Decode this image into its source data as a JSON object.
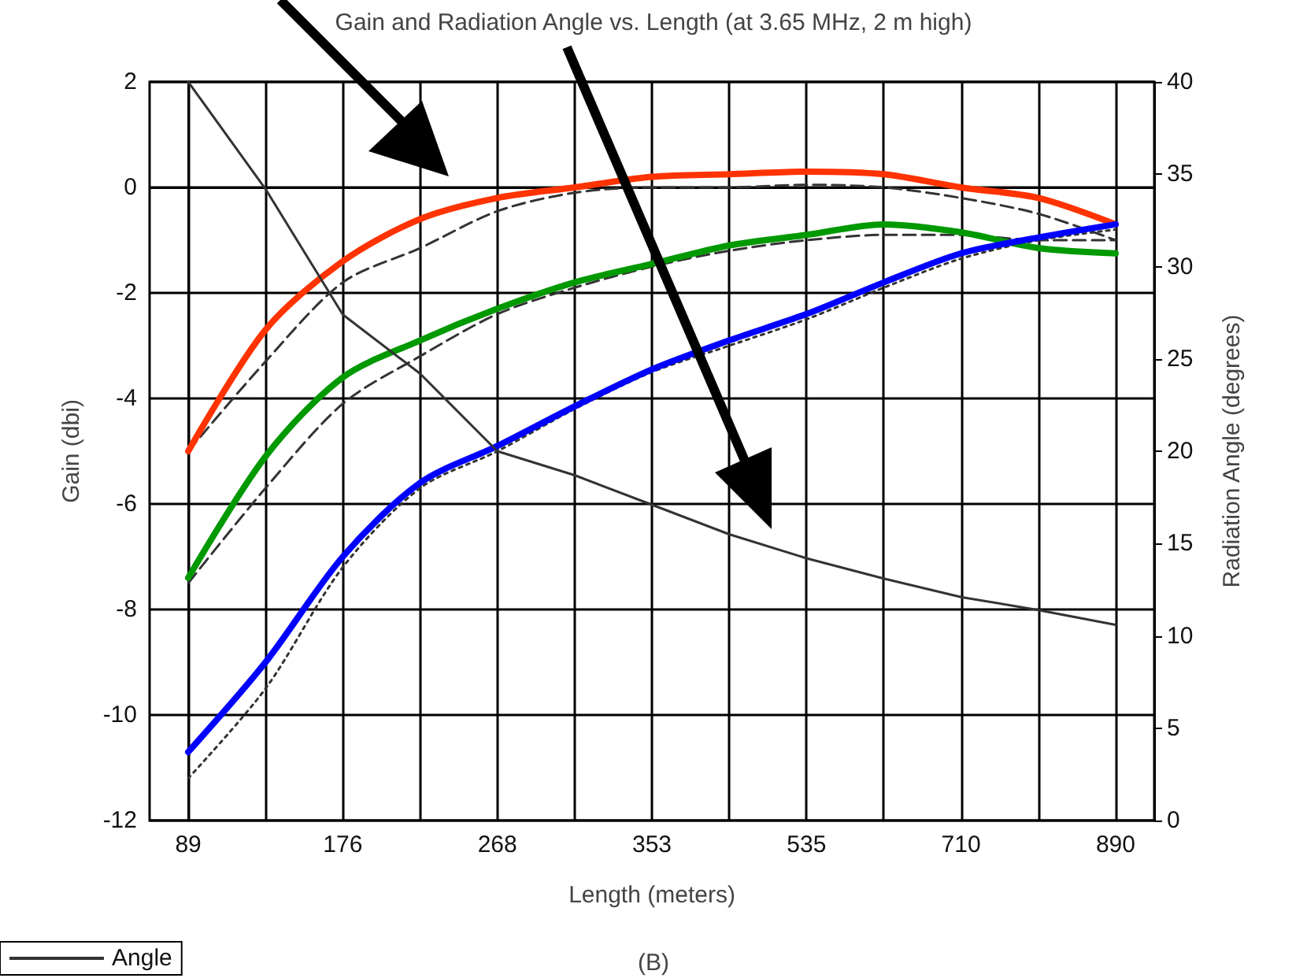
{
  "chart_data": {
    "type": "line",
    "title": "Gain and Radiation Angle vs. Length (at 3.65 MHz, 2 m high)",
    "xlabel": "Length (meters)",
    "ylabel": "Gain (dbi)",
    "y2label": "Radiation Angle (degrees)",
    "categories": [
      "89",
      null,
      "176",
      null,
      "268",
      null,
      "353",
      null,
      "535",
      null,
      "710",
      null,
      "890"
    ],
    "series": [
      {
        "color": "#333333",
        "line_style": "dashed",
        "values": [
          -5.0,
          -3.3,
          -1.8,
          -1.15,
          -0.45,
          -0.1,
          0.0,
          0.0,
          0.05,
          0.0,
          -0.2,
          -0.5,
          -1.0
        ]
      },
      {
        "color": "#333333",
        "line_style": "dashed",
        "values": [
          -7.5,
          -5.7,
          -4.1,
          -3.2,
          -2.4,
          -1.9,
          -1.5,
          -1.2,
          -1.0,
          -0.9,
          -0.9,
          -1.0,
          -1.0
        ]
      },
      {
        "color": "#333333",
        "line_style": "dotted",
        "values": [
          -11.2,
          -9.5,
          -7.2,
          -5.7,
          -5.0,
          -4.2,
          -3.5,
          -3.0,
          -2.5,
          -1.9,
          -1.35,
          -1.0,
          -0.8
        ]
      },
      {
        "color": "#ff3300",
        "line_style": "solid",
        "values": [
          -5.0,
          -2.7,
          -1.4,
          -0.6,
          -0.2,
          0.0,
          0.2,
          0.25,
          0.3,
          0.25,
          0.0,
          -0.2,
          -0.7
        ]
      },
      {
        "color": "#009900",
        "line_style": "solid",
        "values": [
          -7.4,
          -5.1,
          -3.6,
          -2.9,
          -2.3,
          -1.8,
          -1.45,
          -1.1,
          -0.9,
          -0.7,
          -0.85,
          -1.15,
          -1.25
        ]
      },
      {
        "color": "#0000ff",
        "line_style": "solid",
        "values": [
          -10.7,
          -9.0,
          -7.0,
          -5.6,
          -4.9,
          -4.15,
          -3.45,
          -2.9,
          -2.4,
          -1.8,
          -1.25,
          -0.95,
          -0.7
        ]
      },
      {
        "name": "Angle",
        "color": "#333333",
        "line_style": "solid",
        "axis": "y2",
        "values": [
          40,
          34.2,
          27.4,
          24.2,
          20,
          18.7,
          17.1,
          15.5,
          14.2,
          13.1,
          12.1,
          11.4,
          10.6
        ]
      }
    ],
    "ylim": [
      -12,
      2
    ],
    "yticks": [
      -12,
      -10,
      -8,
      -6,
      -4,
      -2,
      0,
      2
    ],
    "y2lim": [
      0,
      40
    ],
    "y2ticks": [
      0,
      5,
      10,
      15,
      20,
      25,
      30,
      35,
      40
    ],
    "grid": true,
    "legend": "bottom left",
    "marker": "none",
    "annotations": [
      "(B)"
    ]
  }
}
